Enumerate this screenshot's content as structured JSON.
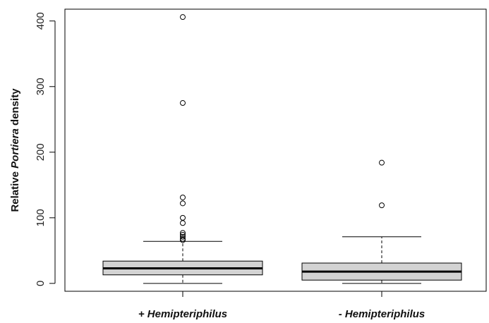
{
  "chart_data": {
    "type": "boxplot",
    "categories": [
      "+ Hemipteriphilus",
      "- Hemipteriphilus"
    ],
    "ylabel": {
      "prefix": "Relative ",
      "emphasis": "Portiera",
      "suffix": " density"
    },
    "ylim": [
      -12,
      418
    ],
    "yticks": [
      0,
      100,
      200,
      300,
      400
    ],
    "grid": false,
    "legend": "none",
    "colors": {
      "box_fill": "#d3d3d3",
      "stroke": "#000000"
    },
    "boxes": [
      {
        "category": "+ Hemipteriphilus",
        "whisker_low": 0,
        "q1": 13,
        "median": 23,
        "q3": 34,
        "whisker_high": 64,
        "outliers": [
          406,
          275,
          131,
          122,
          100,
          92,
          77,
          74,
          71,
          68,
          66
        ]
      },
      {
        "category": "- Hemipteriphilus",
        "whisker_low": 0,
        "q1": 5,
        "median": 18,
        "q3": 31,
        "whisker_high": 71,
        "outliers": [
          184,
          119
        ]
      }
    ]
  }
}
